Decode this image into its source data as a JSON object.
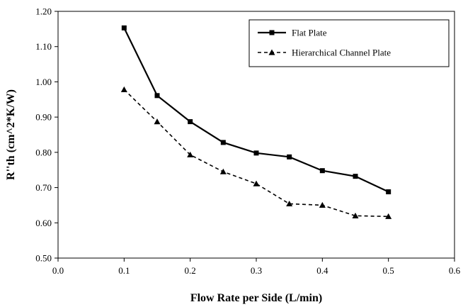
{
  "chart_data": {
    "type": "line",
    "xlabel": "Flow Rate per Side (L/min)",
    "ylabel": "R''th (cm^2*K/W)",
    "xlim": [
      0.0,
      0.6
    ],
    "ylim": [
      0.5,
      1.2
    ],
    "xticks": [
      "0.0",
      "0.1",
      "0.2",
      "0.3",
      "0.4",
      "0.5",
      "0.6"
    ],
    "yticks": [
      "0.50",
      "0.60",
      "0.70",
      "0.80",
      "0.90",
      "1.00",
      "1.10",
      "1.20"
    ],
    "grid": false,
    "legend_position": "top-right",
    "series": [
      {
        "name": "Flat Plate",
        "style": "solid",
        "marker": "square",
        "color": "#000000",
        "x": [
          0.1,
          0.15,
          0.2,
          0.25,
          0.3,
          0.35,
          0.4,
          0.45,
          0.5
        ],
        "y": [
          1.153,
          0.961,
          0.887,
          0.828,
          0.798,
          0.787,
          0.748,
          0.732,
          0.688
        ]
      },
      {
        "name": "Hierarchical Channel Plate",
        "style": "dashed",
        "marker": "triangle",
        "color": "#000000",
        "x": [
          0.1,
          0.15,
          0.2,
          0.25,
          0.3,
          0.35,
          0.4,
          0.45,
          0.5
        ],
        "y": [
          0.978,
          0.887,
          0.793,
          0.745,
          0.711,
          0.654,
          0.65,
          0.62,
          0.618
        ]
      }
    ]
  }
}
